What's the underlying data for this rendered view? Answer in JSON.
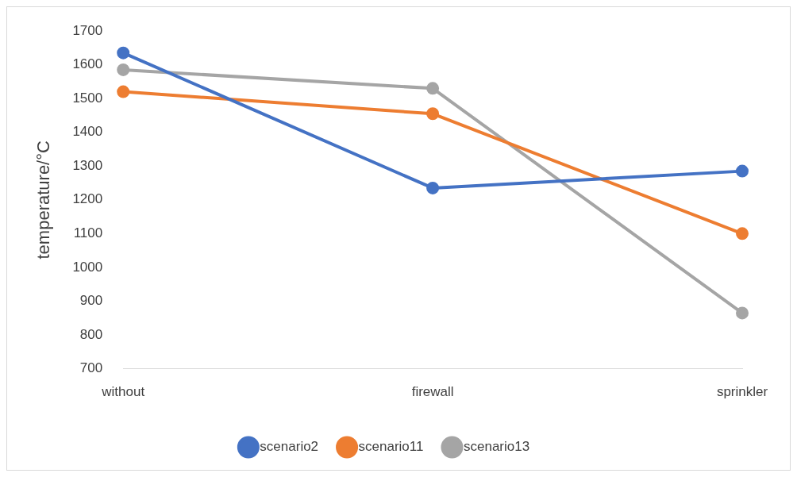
{
  "chart_data": {
    "type": "line",
    "ylabel": "temperature/°C",
    "categories": [
      "without",
      "firewall",
      "sprinkler"
    ],
    "series": [
      {
        "name": "scenario2",
        "color": "#4472c4",
        "values": [
          1635,
          1235,
          1285
        ]
      },
      {
        "name": "scenario11",
        "color": "#ed7d31",
        "values": [
          1520,
          1455,
          1100
        ]
      },
      {
        "name": "scenario13",
        "color": "#a5a5a5",
        "values": [
          1585,
          1530,
          865
        ]
      }
    ],
    "ylim": [
      700,
      1700
    ],
    "yticks": [
      700,
      800,
      900,
      1000,
      1100,
      1200,
      1300,
      1400,
      1500,
      1600,
      1700
    ],
    "grid": false,
    "legend": "bottom",
    "marker": "circle",
    "line_style": "solid"
  }
}
